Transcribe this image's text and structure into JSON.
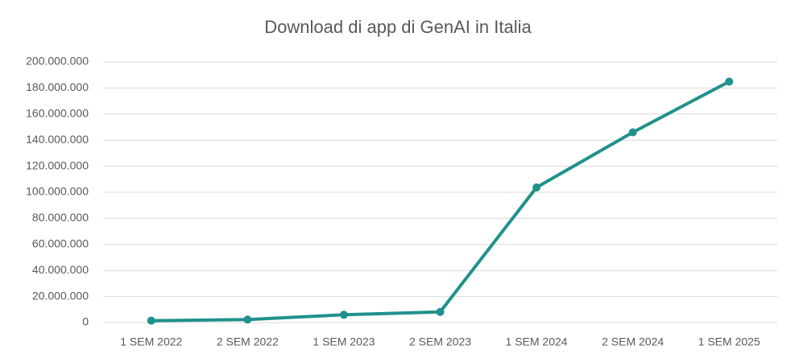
{
  "chart_data": {
    "type": "line",
    "title": "Download di app di GenAI in Italia",
    "categories": [
      "1 SEM 2022",
      "2 SEM 2022",
      "1 SEM 2023",
      "2 SEM 2023",
      "1 SEM 2024",
      "2 SEM 2024",
      "1 SEM 2025"
    ],
    "series": [
      {
        "name": "Download",
        "color": "#20918b",
        "values": [
          1500000,
          2300000,
          6000000,
          8200000,
          103700000,
          146000000,
          184900000
        ]
      }
    ],
    "ylim": [
      0,
      200000000
    ],
    "yticks": [
      {
        "value": 0,
        "label": "0"
      },
      {
        "value": 20000000,
        "label": "20.000.000"
      },
      {
        "value": 40000000,
        "label": "40.000.000"
      },
      {
        "value": 60000000,
        "label": "60.000.000"
      },
      {
        "value": 80000000,
        "label": "80.000.000"
      },
      {
        "value": 100000000,
        "label": "100.000.000"
      },
      {
        "value": 120000000,
        "label": "120.000.000"
      },
      {
        "value": 140000000,
        "label": "140.000.000"
      },
      {
        "value": 160000000,
        "label": "160.000.000"
      },
      {
        "value": 180000000,
        "label": "180.000.000"
      },
      {
        "value": 200000000,
        "label": "200.000.000"
      }
    ],
    "grid": true
  }
}
